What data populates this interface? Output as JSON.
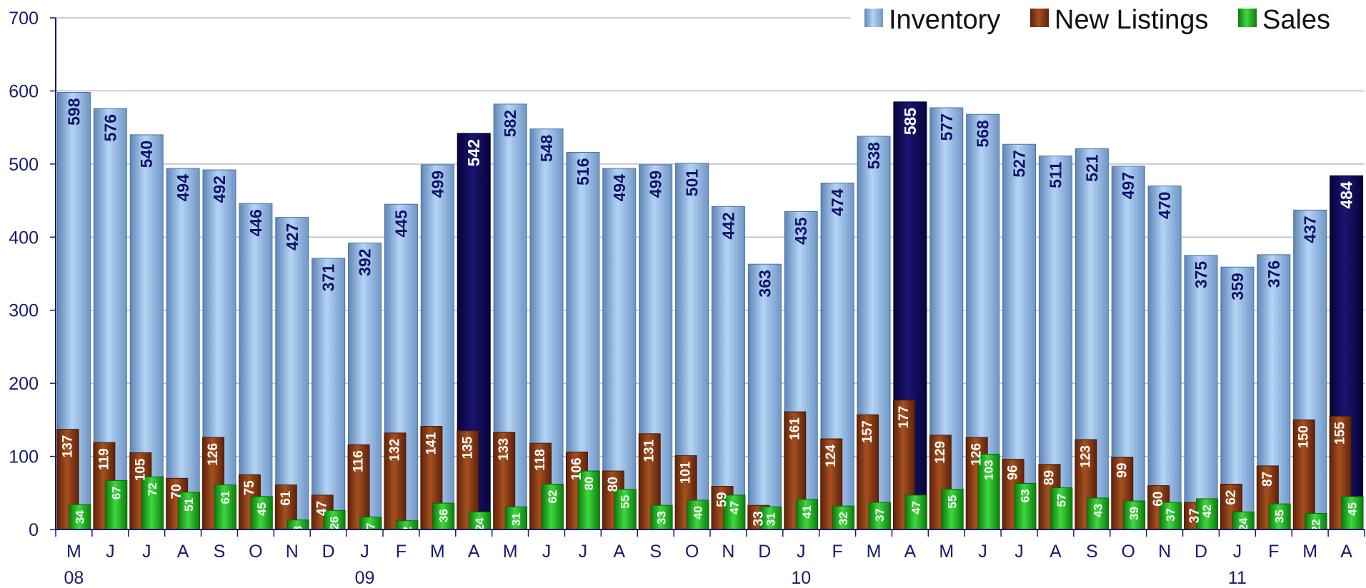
{
  "chart_data": {
    "type": "bar",
    "title": "",
    "xlabel": "",
    "ylabel": "",
    "ylim": [
      0,
      700
    ],
    "yticks": [
      "0",
      "100",
      "200",
      "300",
      "400",
      "500",
      "600",
      "700"
    ],
    "grid": true,
    "legend_position": "top-right",
    "month_labels": [
      "M",
      "J",
      "J",
      "A",
      "S",
      "O",
      "N",
      "D",
      "J",
      "F",
      "M",
      "A",
      "M",
      "J",
      "J",
      "A",
      "S",
      "O",
      "N",
      "D",
      "J",
      "F",
      "M",
      "A",
      "M",
      "J",
      "J",
      "A",
      "S",
      "O",
      "N",
      "D",
      "J",
      "F",
      "M",
      "A"
    ],
    "year_labels": [
      {
        "index": 0,
        "label": "08"
      },
      {
        "index": 8,
        "label": "09"
      },
      {
        "index": 20,
        "label": "10"
      },
      {
        "index": 32,
        "label": "11"
      }
    ],
    "highlight_indices": [
      11,
      23,
      35
    ],
    "colors": {
      "inventory": "#8fbbe8",
      "inventory_highlight": "#100a52",
      "new_listings": "#8a3a12",
      "sales": "#1ab41a",
      "axis_text": "#1a1a6e",
      "grid": "#b8b8c8"
    },
    "series": [
      {
        "name": "Inventory",
        "values": [
          598,
          576,
          540,
          494,
          492,
          446,
          427,
          371,
          392,
          445,
          499,
          542,
          582,
          548,
          516,
          494,
          499,
          501,
          442,
          363,
          435,
          474,
          538,
          585,
          577,
          568,
          527,
          511,
          521,
          497,
          470,
          375,
          359,
          376,
          437,
          484
        ]
      },
      {
        "name": "New Listings",
        "values": [
          137,
          119,
          105,
          70,
          126,
          75,
          61,
          47,
          116,
          132,
          141,
          135,
          133,
          118,
          106,
          80,
          131,
          101,
          59,
          33,
          161,
          124,
          157,
          177,
          129,
          126,
          96,
          89,
          123,
          99,
          60,
          37,
          62,
          87,
          150,
          155
        ]
      },
      {
        "name": "Sales",
        "values": [
          34,
          67,
          72,
          51,
          61,
          45,
          13,
          26,
          17,
          12,
          36,
          24,
          31,
          62,
          80,
          55,
          33,
          40,
          47,
          31,
          41,
          32,
          37,
          47,
          55,
          103,
          63,
          57,
          43,
          39,
          37,
          42,
          24,
          35,
          22,
          45
        ]
      }
    ]
  }
}
